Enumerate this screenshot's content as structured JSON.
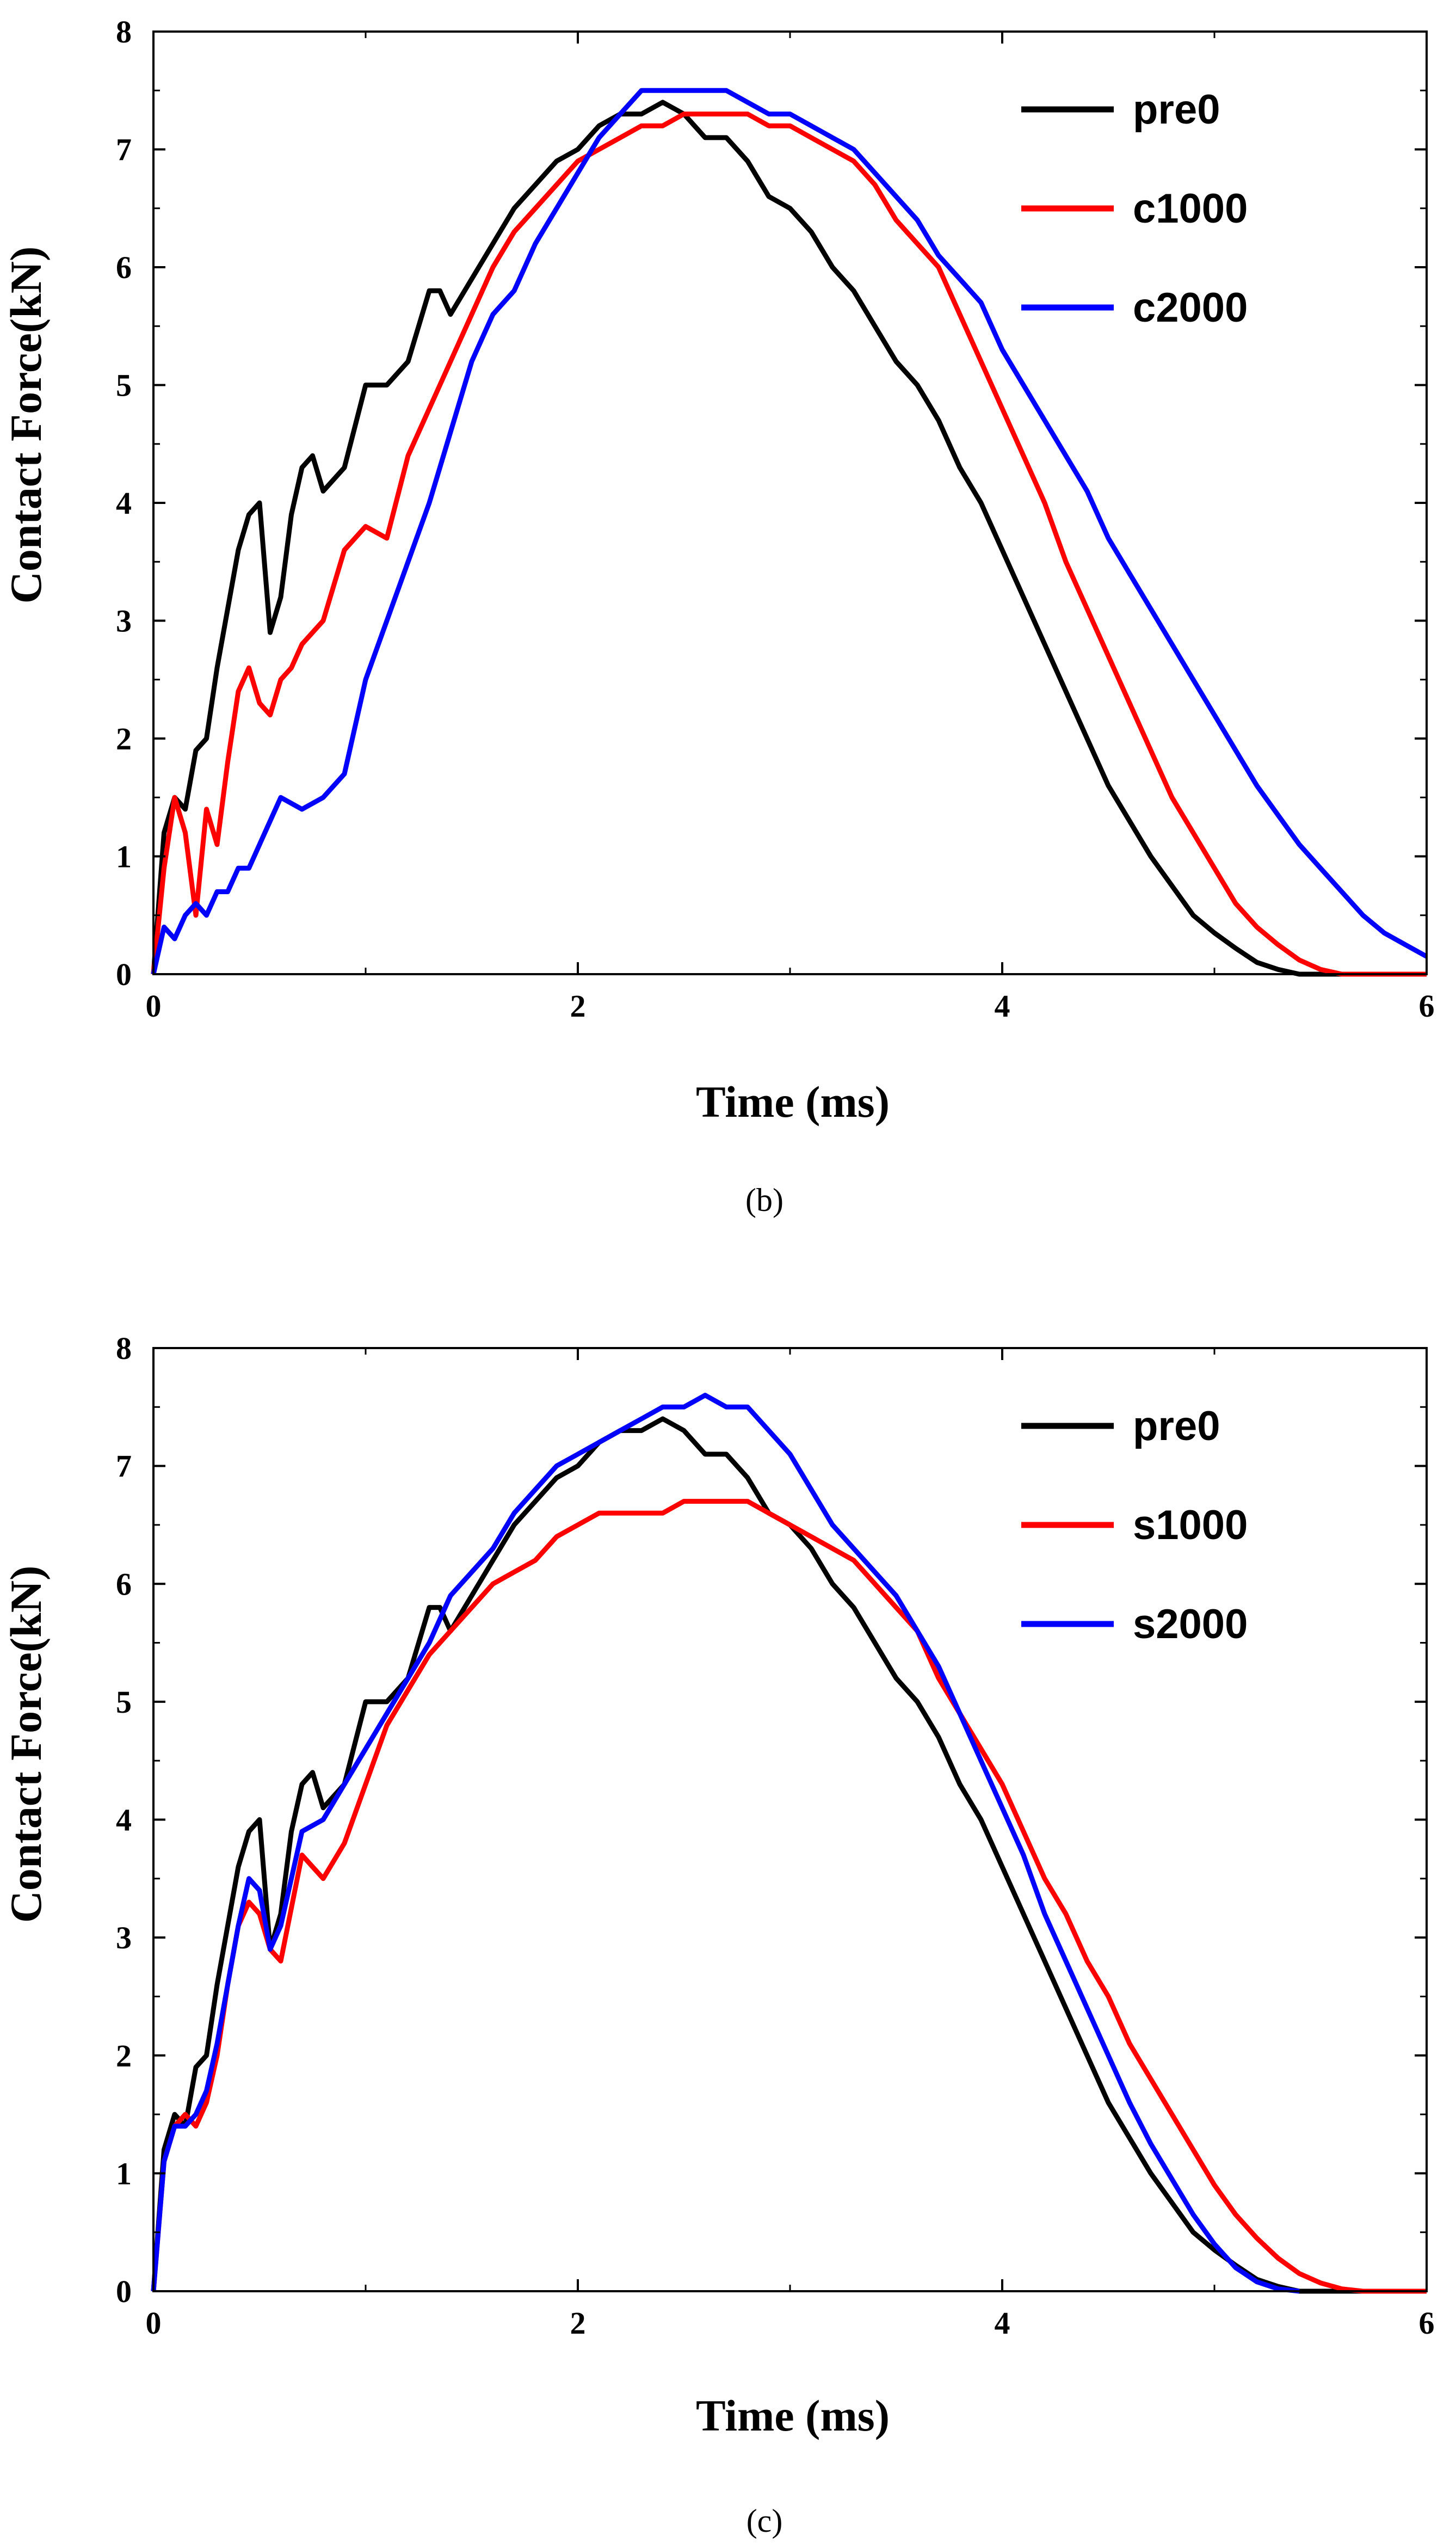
{
  "chart_data": [
    {
      "type": "line",
      "caption": "(b)",
      "xlabel": "Time (ms)",
      "ylabel": "Contact Force(kN)",
      "xlim": [
        0,
        6
      ],
      "ylim": [
        0,
        8
      ],
      "xticks": [
        "0",
        "2",
        "4",
        "6"
      ],
      "yticks": [
        "0",
        "1",
        "2",
        "3",
        "4",
        "5",
        "6",
        "7",
        "8"
      ],
      "grid": false,
      "legend_position": "top-right",
      "series": [
        {
          "name": "pre0",
          "color": "#000000",
          "x": [
            0,
            0.05,
            0.1,
            0.15,
            0.2,
            0.25,
            0.3,
            0.35,
            0.4,
            0.45,
            0.5,
            0.55,
            0.6,
            0.65,
            0.7,
            0.75,
            0.8,
            0.9,
            1.0,
            1.1,
            1.2,
            1.3,
            1.35,
            1.4,
            1.5,
            1.6,
            1.7,
            1.8,
            1.9,
            2.0,
            2.1,
            2.2,
            2.3,
            2.4,
            2.5,
            2.6,
            2.7,
            2.8,
            2.9,
            3.0,
            3.1,
            3.2,
            3.3,
            3.4,
            3.5,
            3.6,
            3.7,
            3.8,
            3.9,
            4.0,
            4.1,
            4.2,
            4.3,
            4.4,
            4.5,
            4.6,
            4.7,
            4.8,
            4.9,
            5.0,
            5.1,
            5.2,
            5.3,
            5.4,
            5.5,
            6.0
          ],
          "y": [
            0,
            1.2,
            1.5,
            1.4,
            1.9,
            2.0,
            2.6,
            3.1,
            3.6,
            3.9,
            4.0,
            2.9,
            3.2,
            3.9,
            4.3,
            4.4,
            4.1,
            4.3,
            5.0,
            5.0,
            5.2,
            5.8,
            5.8,
            5.6,
            5.9,
            6.2,
            6.5,
            6.7,
            6.9,
            7.0,
            7.2,
            7.3,
            7.3,
            7.4,
            7.3,
            7.1,
            7.1,
            6.9,
            6.6,
            6.5,
            6.3,
            6.0,
            5.8,
            5.5,
            5.2,
            5.0,
            4.7,
            4.3,
            4.0,
            3.6,
            3.2,
            2.8,
            2.4,
            2.0,
            1.6,
            1.3,
            1.0,
            0.75,
            0.5,
            0.35,
            0.22,
            0.1,
            0.04,
            0.0,
            0.0,
            0.0
          ]
        },
        {
          "name": "c1000",
          "color": "#ff0000",
          "x": [
            0,
            0.05,
            0.1,
            0.15,
            0.2,
            0.25,
            0.3,
            0.35,
            0.4,
            0.45,
            0.5,
            0.55,
            0.6,
            0.65,
            0.7,
            0.8,
            0.9,
            1.0,
            1.1,
            1.2,
            1.3,
            1.4,
            1.5,
            1.6,
            1.7,
            1.8,
            1.9,
            2.0,
            2.1,
            2.2,
            2.3,
            2.4,
            2.5,
            2.6,
            2.7,
            2.8,
            2.9,
            3.0,
            3.1,
            3.2,
            3.3,
            3.4,
            3.5,
            3.6,
            3.7,
            3.8,
            3.9,
            4.0,
            4.1,
            4.2,
            4.3,
            4.4,
            4.5,
            4.6,
            4.7,
            4.8,
            4.9,
            5.0,
            5.1,
            5.2,
            5.3,
            5.4,
            5.5,
            5.6,
            6.0
          ],
          "y": [
            0,
            0.9,
            1.5,
            1.2,
            0.5,
            1.4,
            1.1,
            1.8,
            2.4,
            2.6,
            2.3,
            2.2,
            2.5,
            2.6,
            2.8,
            3.0,
            3.6,
            3.8,
            3.7,
            4.4,
            4.8,
            5.2,
            5.6,
            6.0,
            6.3,
            6.5,
            6.7,
            6.9,
            7.0,
            7.1,
            7.2,
            7.2,
            7.3,
            7.3,
            7.3,
            7.3,
            7.2,
            7.2,
            7.1,
            7.0,
            6.9,
            6.7,
            6.4,
            6.2,
            6.0,
            5.6,
            5.2,
            4.8,
            4.4,
            4.0,
            3.5,
            3.1,
            2.7,
            2.3,
            1.9,
            1.5,
            1.2,
            0.9,
            0.6,
            0.4,
            0.25,
            0.12,
            0.04,
            0.0,
            0.0
          ]
        },
        {
          "name": "c2000",
          "color": "#0000ff",
          "x": [
            0,
            0.05,
            0.1,
            0.15,
            0.2,
            0.25,
            0.3,
            0.35,
            0.4,
            0.45,
            0.5,
            0.55,
            0.6,
            0.7,
            0.8,
            0.9,
            1.0,
            1.1,
            1.2,
            1.3,
            1.4,
            1.5,
            1.6,
            1.7,
            1.8,
            1.9,
            2.0,
            2.1,
            2.2,
            2.3,
            2.4,
            2.5,
            2.6,
            2.7,
            2.8,
            2.9,
            3.0,
            3.1,
            3.2,
            3.3,
            3.4,
            3.5,
            3.6,
            3.7,
            3.8,
            3.9,
            4.0,
            4.1,
            4.2,
            4.3,
            4.4,
            4.5,
            4.6,
            4.7,
            4.8,
            4.9,
            5.0,
            5.1,
            5.2,
            5.3,
            5.4,
            5.5,
            5.6,
            5.7,
            5.8,
            5.9,
            6.0
          ],
          "y": [
            0,
            0.4,
            0.3,
            0.5,
            0.6,
            0.5,
            0.7,
            0.7,
            0.9,
            0.9,
            1.1,
            1.3,
            1.5,
            1.4,
            1.5,
            1.7,
            2.5,
            3.0,
            3.5,
            4.0,
            4.6,
            5.2,
            5.6,
            5.8,
            6.2,
            6.5,
            6.8,
            7.1,
            7.3,
            7.5,
            7.5,
            7.5,
            7.5,
            7.5,
            7.4,
            7.3,
            7.3,
            7.2,
            7.1,
            7.0,
            6.8,
            6.6,
            6.4,
            6.1,
            5.9,
            5.7,
            5.3,
            5.0,
            4.7,
            4.4,
            4.1,
            3.7,
            3.4,
            3.1,
            2.8,
            2.5,
            2.2,
            1.9,
            1.6,
            1.35,
            1.1,
            0.9,
            0.7,
            0.5,
            0.35,
            0.25,
            0.15
          ]
        }
      ]
    },
    {
      "type": "line",
      "caption": "(c)",
      "xlabel": "Time (ms)",
      "ylabel": "Contact Force(kN)",
      "xlim": [
        0,
        6
      ],
      "ylim": [
        0,
        8
      ],
      "xticks": [
        "0",
        "2",
        "4",
        "6"
      ],
      "yticks": [
        "0",
        "1",
        "2",
        "3",
        "4",
        "5",
        "6",
        "7",
        "8"
      ],
      "grid": false,
      "legend_position": "top-right",
      "series": [
        {
          "name": "pre0",
          "color": "#000000",
          "x": [
            0,
            0.05,
            0.1,
            0.15,
            0.2,
            0.25,
            0.3,
            0.35,
            0.4,
            0.45,
            0.5,
            0.55,
            0.6,
            0.65,
            0.7,
            0.75,
            0.8,
            0.9,
            1.0,
            1.1,
            1.2,
            1.3,
            1.35,
            1.4,
            1.5,
            1.6,
            1.7,
            1.8,
            1.9,
            2.0,
            2.1,
            2.2,
            2.3,
            2.4,
            2.5,
            2.6,
            2.7,
            2.8,
            2.9,
            3.0,
            3.1,
            3.2,
            3.3,
            3.4,
            3.5,
            3.6,
            3.7,
            3.8,
            3.9,
            4.0,
            4.1,
            4.2,
            4.3,
            4.4,
            4.5,
            4.6,
            4.7,
            4.8,
            4.9,
            5.0,
            5.1,
            5.2,
            5.3,
            5.4,
            5.5,
            6.0
          ],
          "y": [
            0,
            1.2,
            1.5,
            1.4,
            1.9,
            2.0,
            2.6,
            3.1,
            3.6,
            3.9,
            4.0,
            2.9,
            3.2,
            3.9,
            4.3,
            4.4,
            4.1,
            4.3,
            5.0,
            5.0,
            5.2,
            5.8,
            5.8,
            5.6,
            5.9,
            6.2,
            6.5,
            6.7,
            6.9,
            7.0,
            7.2,
            7.3,
            7.3,
            7.4,
            7.3,
            7.1,
            7.1,
            6.9,
            6.6,
            6.5,
            6.3,
            6.0,
            5.8,
            5.5,
            5.2,
            5.0,
            4.7,
            4.3,
            4.0,
            3.6,
            3.2,
            2.8,
            2.4,
            2.0,
            1.6,
            1.3,
            1.0,
            0.75,
            0.5,
            0.35,
            0.22,
            0.1,
            0.04,
            0.0,
            0.0,
            0.0
          ]
        },
        {
          "name": "s1000",
          "color": "#ff0000",
          "x": [
            0,
            0.05,
            0.1,
            0.15,
            0.2,
            0.25,
            0.3,
            0.35,
            0.4,
            0.45,
            0.5,
            0.55,
            0.6,
            0.7,
            0.8,
            0.9,
            1.0,
            1.1,
            1.2,
            1.3,
            1.4,
            1.5,
            1.6,
            1.7,
            1.8,
            1.9,
            2.0,
            2.1,
            2.2,
            2.3,
            2.4,
            2.5,
            2.6,
            2.7,
            2.8,
            2.9,
            3.0,
            3.1,
            3.2,
            3.3,
            3.4,
            3.5,
            3.6,
            3.7,
            3.8,
            3.9,
            4.0,
            4.1,
            4.2,
            4.3,
            4.4,
            4.5,
            4.6,
            4.7,
            4.8,
            4.9,
            5.0,
            5.1,
            5.2,
            5.3,
            5.4,
            5.5,
            5.6,
            5.7,
            6.0
          ],
          "y": [
            0,
            1.1,
            1.4,
            1.5,
            1.4,
            1.6,
            2.0,
            2.6,
            3.1,
            3.3,
            3.2,
            2.9,
            2.8,
            3.7,
            3.5,
            3.8,
            4.3,
            4.8,
            5.1,
            5.4,
            5.6,
            5.8,
            6.0,
            6.1,
            6.2,
            6.4,
            6.5,
            6.6,
            6.6,
            6.6,
            6.6,
            6.7,
            6.7,
            6.7,
            6.7,
            6.6,
            6.5,
            6.4,
            6.3,
            6.2,
            6.0,
            5.8,
            5.6,
            5.2,
            4.9,
            4.6,
            4.3,
            3.9,
            3.5,
            3.2,
            2.8,
            2.5,
            2.1,
            1.8,
            1.5,
            1.2,
            0.9,
            0.65,
            0.45,
            0.28,
            0.15,
            0.07,
            0.02,
            0.0,
            0.0
          ]
        },
        {
          "name": "s2000",
          "color": "#0000ff",
          "x": [
            0,
            0.05,
            0.1,
            0.15,
            0.2,
            0.25,
            0.3,
            0.35,
            0.4,
            0.45,
            0.5,
            0.55,
            0.6,
            0.7,
            0.8,
            0.9,
            1.0,
            1.1,
            1.2,
            1.3,
            1.4,
            1.5,
            1.6,
            1.7,
            1.8,
            1.9,
            2.0,
            2.1,
            2.2,
            2.3,
            2.4,
            2.5,
            2.6,
            2.7,
            2.8,
            2.9,
            3.0,
            3.1,
            3.2,
            3.3,
            3.4,
            3.5,
            3.6,
            3.7,
            3.8,
            3.9,
            4.0,
            4.1,
            4.2,
            4.3,
            4.4,
            4.5,
            4.6,
            4.7,
            4.8,
            4.9,
            5.0,
            5.1,
            5.2,
            5.3,
            5.4
          ],
          "y": [
            0,
            1.1,
            1.4,
            1.4,
            1.5,
            1.7,
            2.1,
            2.6,
            3.1,
            3.5,
            3.4,
            2.9,
            3.1,
            3.9,
            4.0,
            4.3,
            4.6,
            4.9,
            5.2,
            5.5,
            5.9,
            6.1,
            6.3,
            6.6,
            6.8,
            7.0,
            7.1,
            7.2,
            7.3,
            7.4,
            7.5,
            7.5,
            7.6,
            7.5,
            7.5,
            7.3,
            7.1,
            6.8,
            6.5,
            6.3,
            6.1,
            5.9,
            5.6,
            5.3,
            4.9,
            4.5,
            4.1,
            3.7,
            3.2,
            2.8,
            2.4,
            2.0,
            1.6,
            1.25,
            0.95,
            0.65,
            0.4,
            0.2,
            0.08,
            0.02,
            0.0
          ]
        }
      ]
    }
  ]
}
